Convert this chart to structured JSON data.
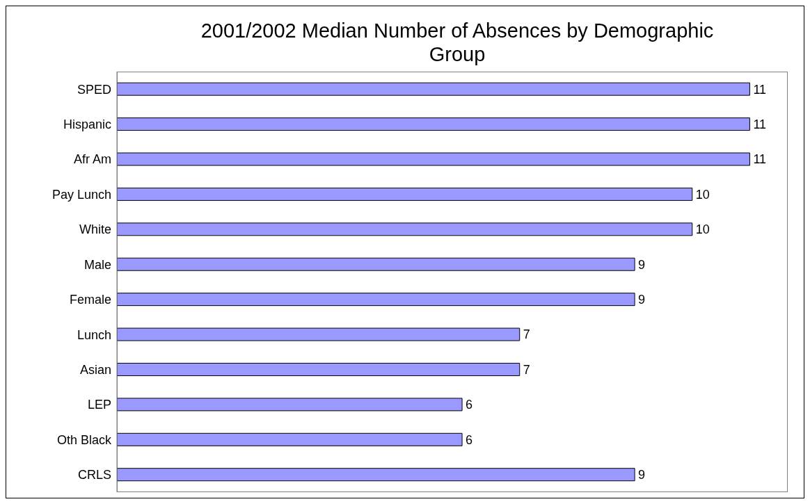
{
  "chart_data": {
    "type": "bar",
    "orientation": "horizontal",
    "title": "2001/2002 Median Number of Absences by Demographic Group",
    "categories": [
      "SPED",
      "Hispanic",
      "Afr Am",
      "Pay Lunch",
      "White",
      "Male",
      "Female",
      "Lunch",
      "Asian",
      "LEP",
      "Oth Black",
      "CRLS"
    ],
    "values": [
      11,
      11,
      11,
      10,
      10,
      9,
      9,
      7,
      7,
      6,
      6,
      9
    ],
    "color": "#9999ff",
    "data_labels": true,
    "grid": false,
    "legend": false
  }
}
